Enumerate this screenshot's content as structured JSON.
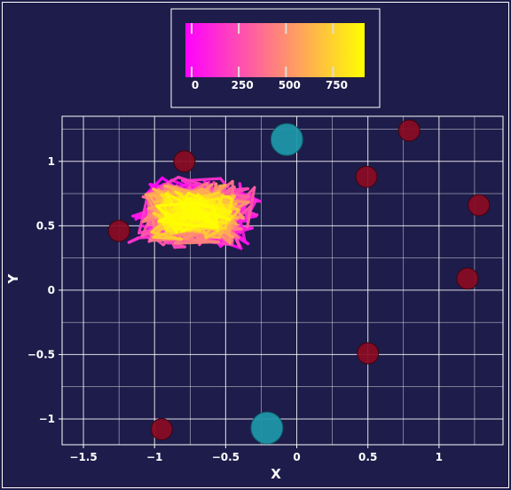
{
  "chart_data": {
    "type": "scatter",
    "title": "",
    "xlabel": "X",
    "ylabel": "Y",
    "xlim": [
      -1.65,
      1.45
    ],
    "ylim": [
      -1.2,
      1.35
    ],
    "xticks": [
      -1.5,
      -1,
      -0.5,
      0,
      0.5,
      1
    ],
    "xtick_labels": [
      "−1.5",
      "−1",
      "−0.5",
      "0",
      "0.5",
      "1"
    ],
    "yticks": [
      -1,
      -0.5,
      0,
      0.5,
      1
    ],
    "ytick_labels": [
      "−1",
      "−0.5",
      "0",
      "0.5",
      "1"
    ],
    "grid": true,
    "colorbar": {
      "placement": "top-center",
      "colormap": "spring",
      "range": [
        0,
        950
      ],
      "ticks": [
        0,
        250,
        500,
        750
      ],
      "tick_labels": [
        "0",
        "250",
        "500",
        "750"
      ]
    },
    "series": [
      {
        "kind": "trajectory",
        "color_by": "step",
        "n_steps": 950,
        "center": [
          -0.72,
          0.6
        ],
        "x_range": [
          -1.5,
          -0.25
        ],
        "y_range": [
          0.18,
          0.95
        ]
      },
      {
        "kind": "points",
        "color": "#8b0a22",
        "points": [
          [
            -0.79,
            1.0
          ],
          [
            0.79,
            1.24
          ],
          [
            0.49,
            0.88
          ],
          [
            -1.25,
            0.46
          ],
          [
            1.28,
            0.66
          ],
          [
            1.2,
            0.09
          ],
          [
            0.5,
            -0.49
          ],
          [
            -0.95,
            -1.08
          ]
        ]
      },
      {
        "kind": "points",
        "color": "#1f96a8",
        "points": [
          [
            -0.07,
            1.17
          ],
          [
            -0.21,
            -1.07
          ]
        ]
      }
    ]
  }
}
